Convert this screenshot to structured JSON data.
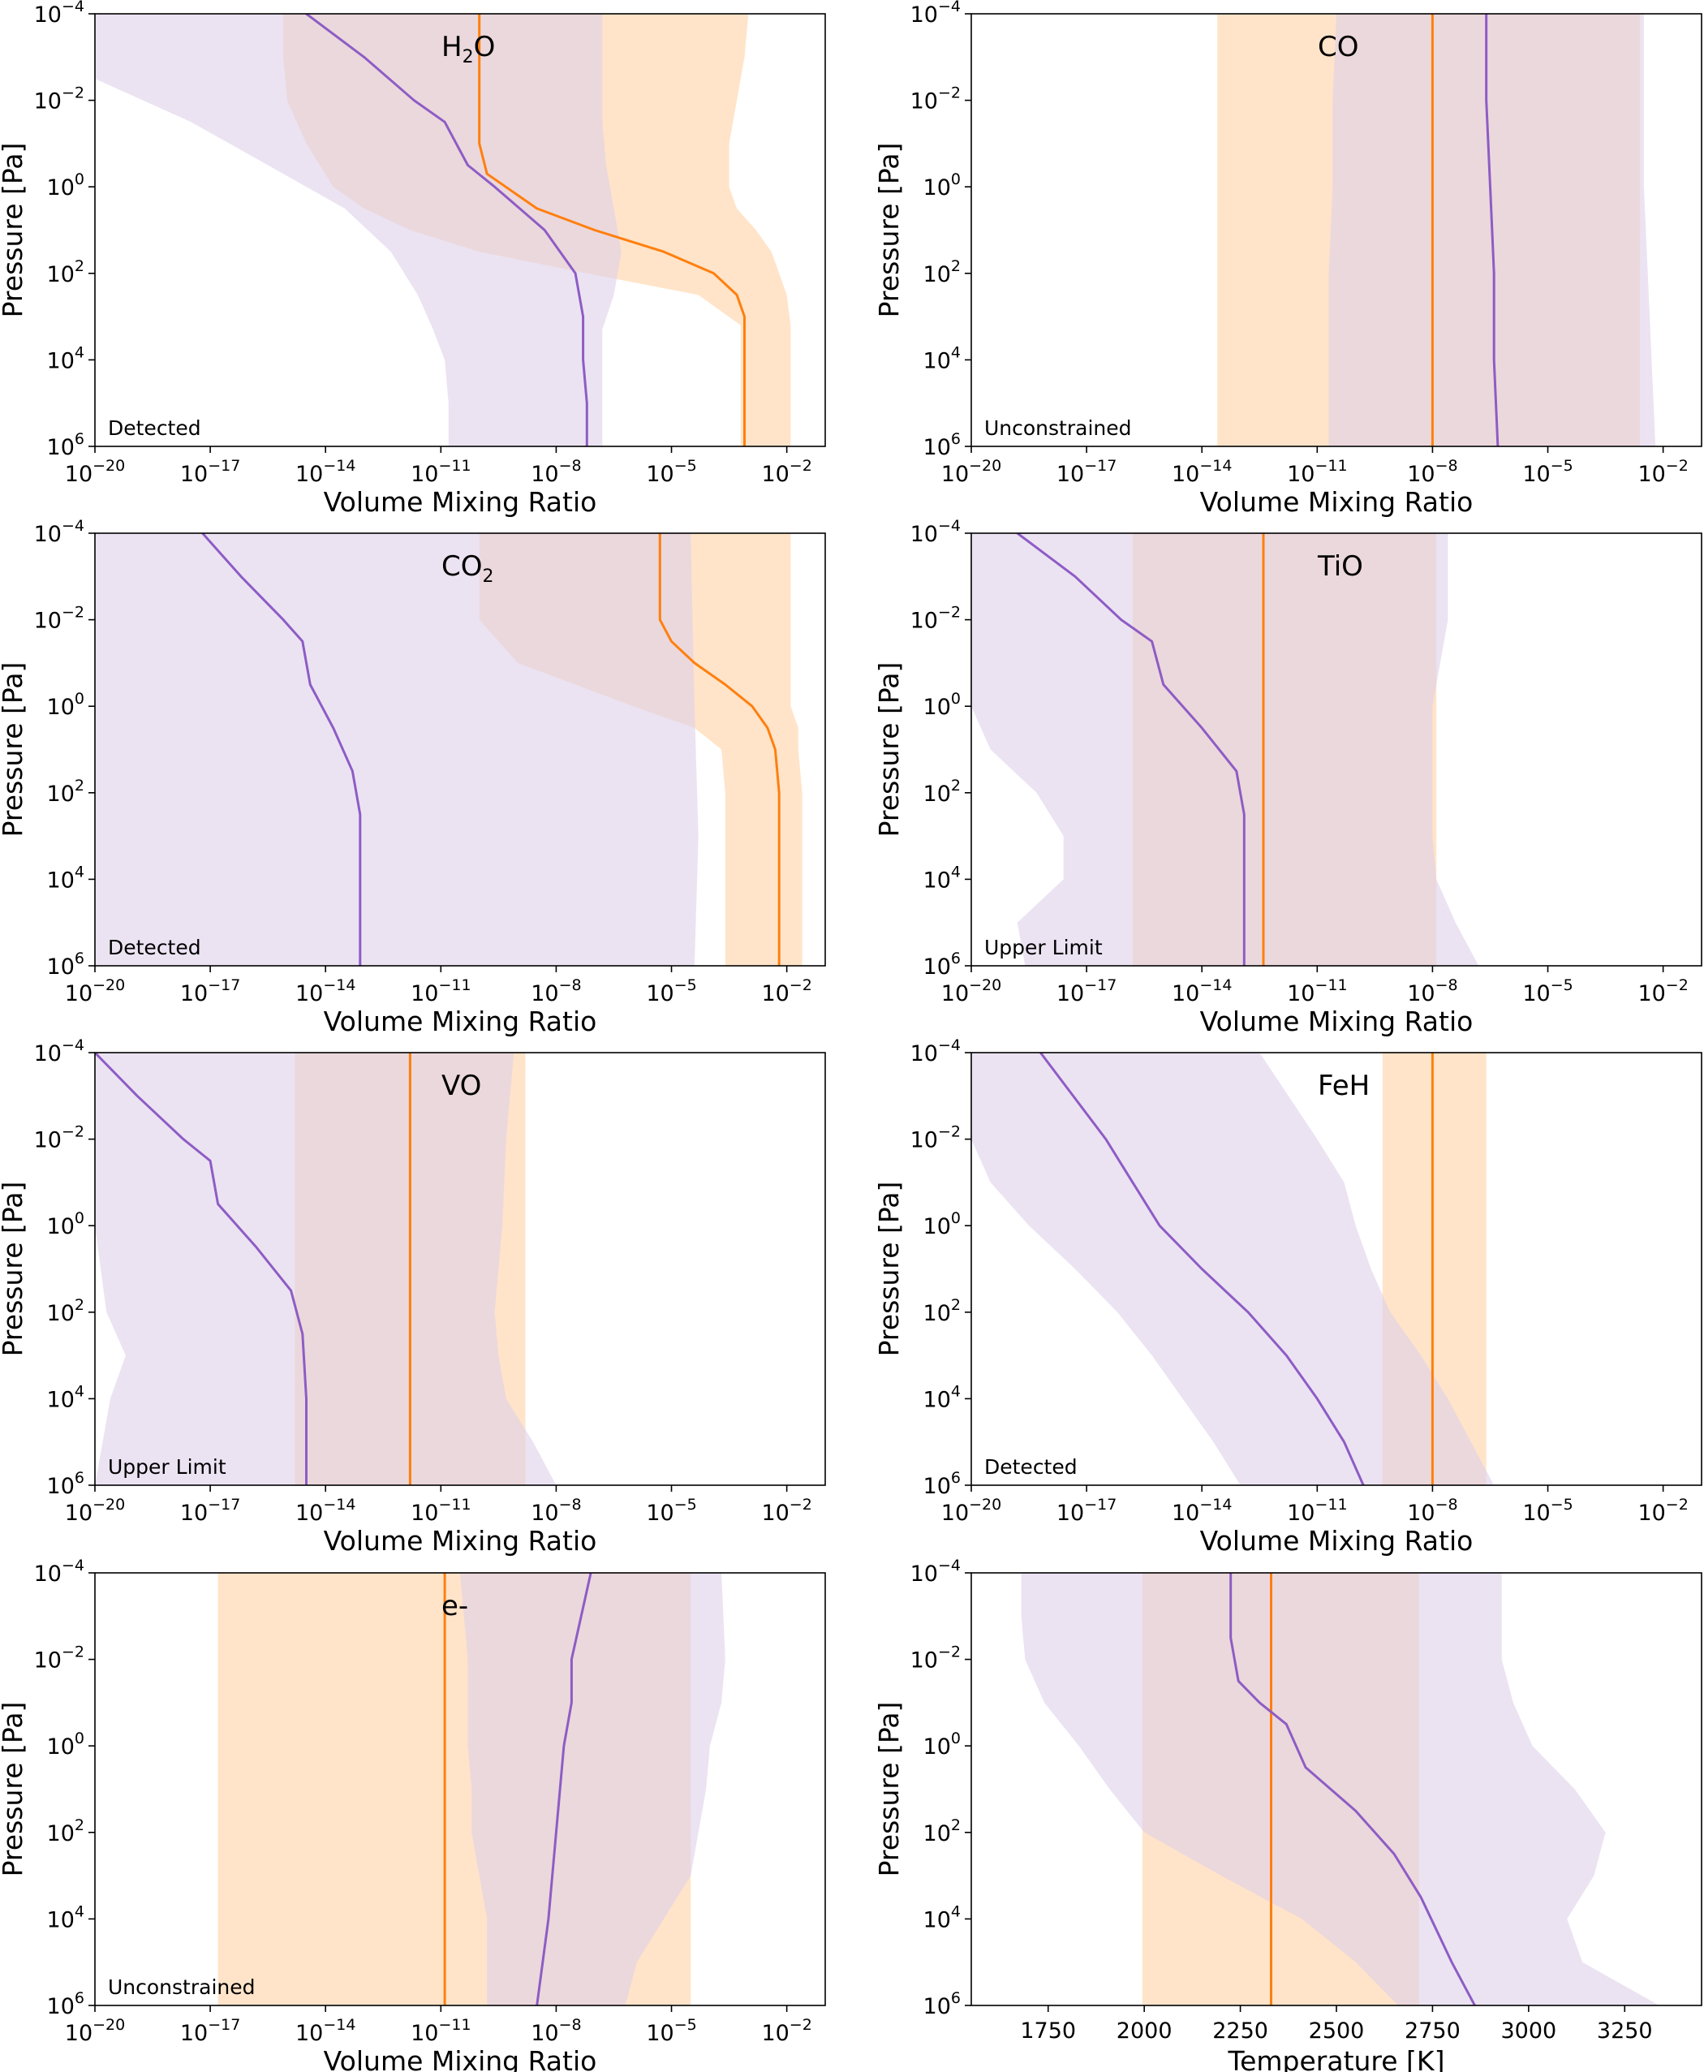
{
  "figure": {
    "colors": {
      "retrieved": "#ff7f0e",
      "retrieved_band": "#ffdfc0",
      "model": "#8e5cc5",
      "model_band": "#ddd0ea",
      "frame": "#000000"
    },
    "y_axis_label": "Pressure [Pa]",
    "y_ticks": [
      {
        "base": "10",
        "exp": "−4"
      },
      {
        "base": "10",
        "exp": "−2"
      },
      {
        "base": "10",
        "exp": "0"
      },
      {
        "base": "10",
        "exp": "2"
      },
      {
        "base": "10",
        "exp": "4"
      },
      {
        "base": "10",
        "exp": "6"
      }
    ],
    "vmr_x_axis_label": "Volume Mixing Ratio",
    "vmr_x_ticks": [
      {
        "base": "10",
        "exp": "−20"
      },
      {
        "base": "10",
        "exp": "−17"
      },
      {
        "base": "10",
        "exp": "−14"
      },
      {
        "base": "10",
        "exp": "−11"
      },
      {
        "base": "10",
        "exp": "−8"
      },
      {
        "base": "10",
        "exp": "−5"
      },
      {
        "base": "10",
        "exp": "−2"
      }
    ]
  },
  "chart_data": [
    {
      "type": "area",
      "species": "H",
      "species_sub": "2",
      "species_tail": "O",
      "status": "Detected",
      "xlabel": "Volume Mixing Ratio",
      "ylabel": "Pressure [Pa]",
      "xscale": "log",
      "yscale": "log",
      "xlim": [
        -20,
        -1
      ],
      "ylim": [
        -4,
        6
      ],
      "y_inverted": true,
      "grid": false,
      "model_band": [
        [
          -4,
          -20,
          -6.8
        ],
        [
          -2.5,
          -20,
          -6.8
        ],
        [
          -1.5,
          -17.5,
          -6.8
        ],
        [
          -0.5,
          -15.5,
          -6.7
        ],
        [
          0.5,
          -13.5,
          -6.5
        ],
        [
          1.5,
          -12.3,
          -6.3
        ],
        [
          2.5,
          -11.6,
          -6.5
        ],
        [
          3.3,
          -11.2,
          -6.8
        ],
        [
          4,
          -10.9,
          -6.8
        ],
        [
          5,
          -10.8,
          -6.8
        ],
        [
          6,
          -10.8,
          -6.8
        ]
      ],
      "model_line": [
        [
          -4,
          -14.5
        ],
        [
          -3,
          -13
        ],
        [
          -2,
          -11.7
        ],
        [
          -1.5,
          -10.9
        ],
        [
          -1,
          -10.6
        ],
        [
          -0.5,
          -10.3
        ],
        [
          0,
          -9.6
        ],
        [
          1,
          -8.3
        ],
        [
          2,
          -7.5
        ],
        [
          3,
          -7.3
        ],
        [
          4,
          -7.3
        ],
        [
          5,
          -7.2
        ],
        [
          6,
          -7.2
        ]
      ],
      "retrieved_band": [
        [
          -4,
          -15.1,
          -3
        ],
        [
          -3,
          -15.1,
          -3.1
        ],
        [
          -2,
          -15,
          -3.3
        ],
        [
          -1,
          -14.5,
          -3.5
        ],
        [
          0,
          -13.8,
          -3.5
        ],
        [
          0.5,
          -13,
          -3.3
        ],
        [
          1,
          -11.8,
          -2.8
        ],
        [
          1.5,
          -10,
          -2.4
        ],
        [
          2,
          -7.2,
          -2.2
        ],
        [
          2.5,
          -4.3,
          -2
        ],
        [
          3.2,
          -3.2,
          -1.9
        ],
        [
          4,
          -3.2,
          -1.9
        ],
        [
          6,
          -3.2,
          -1.9
        ]
      ],
      "retrieved_line": [
        [
          -4,
          -10
        ],
        [
          -1,
          -10
        ],
        [
          -0.3,
          -9.8
        ],
        [
          0.5,
          -8.5
        ],
        [
          1,
          -7
        ],
        [
          1.5,
          -5.2
        ],
        [
          2,
          -3.9
        ],
        [
          2.5,
          -3.3
        ],
        [
          3,
          -3.1
        ],
        [
          4,
          -3.1
        ],
        [
          6,
          -3.1
        ]
      ]
    },
    {
      "type": "area",
      "species": "CO",
      "status": "Unconstrained",
      "xlabel": "Volume Mixing Ratio",
      "ylabel": "Pressure [Pa]",
      "xscale": "log",
      "yscale": "log",
      "xlim": [
        -20,
        -1
      ],
      "ylim": [
        -4,
        6
      ],
      "y_inverted": true,
      "grid": false,
      "model_band": [
        [
          -4,
          -10.5,
          -2.5
        ],
        [
          -2,
          -10.6,
          -2.5
        ],
        [
          0,
          -10.6,
          -2.5
        ],
        [
          2,
          -10.7,
          -2.4
        ],
        [
          4,
          -10.7,
          -2.3
        ],
        [
          6,
          -10.7,
          -2.2
        ]
      ],
      "model_line": [
        [
          -4,
          -6.6
        ],
        [
          -2,
          -6.6
        ],
        [
          0,
          -6.5
        ],
        [
          2,
          -6.4
        ],
        [
          4,
          -6.4
        ],
        [
          6,
          -6.3
        ]
      ],
      "retrieved_band": [
        [
          -4,
          -13.6,
          -2.6
        ],
        [
          6,
          -13.6,
          -2.6
        ]
      ],
      "retrieved_line": [
        [
          -4,
          -8
        ],
        [
          6,
          -8
        ]
      ]
    },
    {
      "type": "area",
      "species": "CO",
      "species_sub": "2",
      "species_tail": "",
      "status": "Detected",
      "xlabel": "Volume Mixing Ratio",
      "ylabel": "Pressure [Pa]",
      "xscale": "log",
      "yscale": "log",
      "xlim": [
        -20,
        -1
      ],
      "ylim": [
        -4,
        6
      ],
      "y_inverted": true,
      "grid": false,
      "model_band": [
        [
          -4,
          -20,
          -4.5
        ],
        [
          0,
          -20,
          -4.4
        ],
        [
          3,
          -20,
          -4.3
        ],
        [
          6,
          -20,
          -4.4
        ]
      ],
      "model_line": [
        [
          -4,
          -17.2
        ],
        [
          -3,
          -16.2
        ],
        [
          -2,
          -15.1
        ],
        [
          -1.5,
          -14.6
        ],
        [
          -0.5,
          -14.4
        ],
        [
          0.5,
          -13.8
        ],
        [
          1.5,
          -13.3
        ],
        [
          2.5,
          -13.1
        ],
        [
          4,
          -13.1
        ],
        [
          6,
          -13.1
        ]
      ],
      "retrieved_band": [
        [
          -4,
          -10,
          -1.9
        ],
        [
          -2,
          -10,
          -1.9
        ],
        [
          -1,
          -9,
          -1.9
        ],
        [
          0,
          -6,
          -1.9
        ],
        [
          0.5,
          -4.4,
          -1.7
        ],
        [
          1,
          -3.7,
          -1.7
        ],
        [
          2,
          -3.6,
          -1.6
        ],
        [
          4,
          -3.6,
          -1.6
        ],
        [
          6,
          -3.6,
          -1.6
        ]
      ],
      "retrieved_line": [
        [
          -4,
          -5.3
        ],
        [
          -2,
          -5.3
        ],
        [
          -1.5,
          -5
        ],
        [
          -1,
          -4.4
        ],
        [
          -0.5,
          -3.6
        ],
        [
          0,
          -2.9
        ],
        [
          0.5,
          -2.5
        ],
        [
          1,
          -2.3
        ],
        [
          2,
          -2.2
        ],
        [
          4,
          -2.2
        ],
        [
          6,
          -2.2
        ]
      ]
    },
    {
      "type": "area",
      "species": "TiO",
      "status": "Upper Limit",
      "xlabel": "Volume Mixing Ratio",
      "ylabel": "Pressure [Pa]",
      "xscale": "log",
      "yscale": "log",
      "xlim": [
        -20,
        -1
      ],
      "ylim": [
        -4,
        6
      ],
      "y_inverted": true,
      "grid": false,
      "model_band": [
        [
          -4,
          -20,
          -7.6
        ],
        [
          -2,
          -20,
          -7.6
        ],
        [
          -1,
          -20,
          -7.8
        ],
        [
          0,
          -20,
          -8
        ],
        [
          1,
          -19.5,
          -8
        ],
        [
          2,
          -18.3,
          -8
        ],
        [
          3,
          -17.6,
          -8
        ],
        [
          4,
          -17.6,
          -7.9
        ],
        [
          5,
          -18.8,
          -7.4
        ],
        [
          6,
          -18.6,
          -6.8
        ]
      ],
      "model_line": [
        [
          -4,
          -18.8
        ],
        [
          -3,
          -17.3
        ],
        [
          -2,
          -16.1
        ],
        [
          -1.5,
          -15.3
        ],
        [
          -0.5,
          -15
        ],
        [
          0.5,
          -14
        ],
        [
          1.5,
          -13.1
        ],
        [
          2.5,
          -12.9
        ],
        [
          4,
          -12.9
        ],
        [
          6,
          -12.9
        ]
      ],
      "retrieved_band": [
        [
          -4,
          -15.8,
          -7.9
        ],
        [
          6,
          -15.8,
          -7.9
        ]
      ],
      "retrieved_line": [
        [
          -4,
          -12.4
        ],
        [
          6,
          -12.4
        ]
      ]
    },
    {
      "type": "area",
      "species": "VO",
      "status": "Upper Limit",
      "xlabel": "Volume Mixing Ratio",
      "ylabel": "Pressure [Pa]",
      "xscale": "log",
      "yscale": "log",
      "xlim": [
        -20,
        -1
      ],
      "ylim": [
        -4,
        6
      ],
      "y_inverted": true,
      "grid": false,
      "model_band": [
        [
          -4,
          -20,
          -9.1
        ],
        [
          -2,
          -20,
          -9.3
        ],
        [
          0,
          -20,
          -9.4
        ],
        [
          2,
          -19.7,
          -9.6
        ],
        [
          3,
          -19.2,
          -9.5
        ],
        [
          4,
          -19.6,
          -9.3
        ],
        [
          5,
          -19.8,
          -8.6
        ],
        [
          6,
          -20,
          -8
        ]
      ],
      "model_line": [
        [
          -4,
          -20
        ],
        [
          -3,
          -18.9
        ],
        [
          -2,
          -17.7
        ],
        [
          -1.5,
          -17
        ],
        [
          -0.5,
          -16.8
        ],
        [
          0.5,
          -15.8
        ],
        [
          1.5,
          -14.9
        ],
        [
          2.5,
          -14.6
        ],
        [
          4,
          -14.5
        ],
        [
          6,
          -14.5
        ]
      ],
      "retrieved_band": [
        [
          -4,
          -14.8,
          -8.8
        ],
        [
          6,
          -14.8,
          -8.8
        ]
      ],
      "retrieved_line": [
        [
          -4,
          -11.8
        ],
        [
          6,
          -11.8
        ]
      ]
    },
    {
      "type": "area",
      "species": "FeH",
      "status": "Detected",
      "xlabel": "Volume Mixing Ratio",
      "ylabel": "Pressure [Pa]",
      "xscale": "log",
      "yscale": "log",
      "xlim": [
        -20,
        -1
      ],
      "ylim": [
        -4,
        6
      ],
      "y_inverted": true,
      "grid": false,
      "model_band": [
        [
          -4,
          -20,
          -12.5
        ],
        [
          -2,
          -20,
          -11
        ],
        [
          -1,
          -19.5,
          -10.3
        ],
        [
          0,
          -18.5,
          -10
        ],
        [
          1,
          -17.3,
          -9.6
        ],
        [
          2,
          -16.2,
          -9.1
        ],
        [
          3,
          -15.3,
          -8.3
        ],
        [
          4,
          -14.5,
          -7.6
        ],
        [
          5,
          -13.7,
          -7
        ],
        [
          6,
          -13,
          -6.4
        ]
      ],
      "model_line": [
        [
          -4,
          -18.2
        ],
        [
          -2,
          -16.5
        ],
        [
          -1,
          -15.8
        ],
        [
          0,
          -15.1
        ],
        [
          1,
          -14
        ],
        [
          2,
          -12.8
        ],
        [
          3,
          -11.8
        ],
        [
          4,
          -11
        ],
        [
          5,
          -10.3
        ],
        [
          6,
          -9.8
        ]
      ],
      "retrieved_band": [
        [
          -4,
          -9.3,
          -6.6
        ],
        [
          6,
          -9.3,
          -6.6
        ]
      ],
      "retrieved_line": [
        [
          -4,
          -8
        ],
        [
          6,
          -8
        ]
      ]
    },
    {
      "type": "area",
      "species": "e-",
      "status": "Unconstrained",
      "xlabel": "Volume Mixing Ratio",
      "ylabel": "Pressure [Pa]",
      "xscale": "log",
      "yscale": "log",
      "xlim": [
        -20,
        -1
      ],
      "ylim": [
        -4,
        6
      ],
      "y_inverted": true,
      "grid": false,
      "model_band": [
        [
          -4,
          -10.5,
          -3.7
        ],
        [
          -2,
          -10.3,
          -3.6
        ],
        [
          -1,
          -10.3,
          -3.7
        ],
        [
          0,
          -10.3,
          -4
        ],
        [
          1,
          -10.2,
          -4.1
        ],
        [
          2,
          -10.2,
          -4.3
        ],
        [
          3,
          -10,
          -4.5
        ],
        [
          4,
          -9.8,
          -5.2
        ],
        [
          5,
          -9.8,
          -5.9
        ],
        [
          6,
          -9.8,
          -6.2
        ]
      ],
      "model_line": [
        [
          -4,
          -7.1
        ],
        [
          -2,
          -7.6
        ],
        [
          -1,
          -7.6
        ],
        [
          0,
          -7.8
        ],
        [
          2,
          -8
        ],
        [
          4,
          -8.2
        ],
        [
          6,
          -8.5
        ]
      ],
      "retrieved_band": [
        [
          -4,
          -16.8,
          -4.5
        ],
        [
          6,
          -16.8,
          -4.5
        ]
      ],
      "retrieved_line": [
        [
          -4,
          -10.9
        ],
        [
          6,
          -10.9
        ]
      ]
    },
    {
      "type": "area",
      "species": "",
      "status": "",
      "xlabel": "Temperature [K]",
      "ylabel": "Pressure [Pa]",
      "xscale": "linear",
      "yscale": "log",
      "xlim": [
        1550,
        3450
      ],
      "ylim": [
        -4,
        6
      ],
      "y_inverted": true,
      "grid": false,
      "x_ticks": [
        "1750",
        "2000",
        "2250",
        "2500",
        "2750",
        "3000",
        "3250"
      ],
      "model_band": [
        [
          -4,
          1680,
          2930
        ],
        [
          -3,
          1680,
          2930
        ],
        [
          -2,
          1690,
          2930
        ],
        [
          -1,
          1740,
          2960
        ],
        [
          0,
          1830,
          3010
        ],
        [
          1,
          1910,
          3120
        ],
        [
          2,
          2000,
          3200
        ],
        [
          3,
          2200,
          3170
        ],
        [
          4,
          2410,
          3100
        ],
        [
          5,
          2550,
          3140
        ],
        [
          6,
          2660,
          3340
        ]
      ],
      "model_line": [
        [
          -4,
          2225
        ],
        [
          -2.5,
          2225
        ],
        [
          -1.5,
          2245
        ],
        [
          -1,
          2300
        ],
        [
          -0.5,
          2370
        ],
        [
          0.5,
          2420
        ],
        [
          1.5,
          2550
        ],
        [
          2.5,
          2650
        ],
        [
          3.5,
          2720
        ],
        [
          5,
          2800
        ],
        [
          6,
          2860
        ]
      ],
      "retrieved_band": [
        [
          -4,
          1995,
          2715
        ],
        [
          6,
          1995,
          2715
        ]
      ],
      "retrieved_line": [
        [
          -4,
          2330
        ],
        [
          6,
          2330
        ]
      ]
    }
  ]
}
